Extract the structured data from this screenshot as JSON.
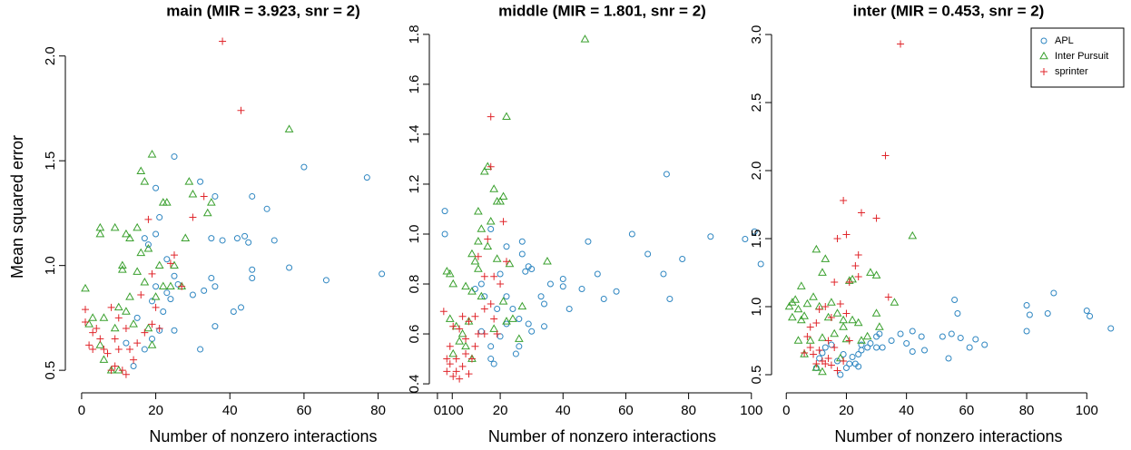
{
  "chart_data": [
    {
      "type": "scatter",
      "title": "main (MIR = 3.923, snr = 2)",
      "xlabel": "Number of nonzero interactions",
      "ylabel": "Mean squared error",
      "xlim": [
        -3.9,
        101.9
      ],
      "ylim": [
        0.427,
        2.133
      ],
      "xticks": [
        0,
        20,
        40,
        60,
        80,
        100
      ],
      "yticks": [
        0.5,
        {
          "value": 1.0,
          "label": "1.0"
        },
        1.5,
        {
          "value": 2.0,
          "label": "2.0"
        }
      ],
      "series": [
        {
          "color": "#2e86c1",
          "marker": "circle",
          "x": [
            25,
            32,
            20,
            36,
            60,
            77,
            98,
            98,
            81,
            66,
            56,
            52,
            50,
            46,
            44,
            45,
            42,
            35,
            38,
            46,
            46,
            35,
            36,
            33,
            30,
            43,
            41,
            36,
            32,
            23,
            18,
            17,
            20,
            21,
            25,
            24,
            22,
            21,
            25,
            19,
            17,
            14,
            12,
            15,
            19,
            23,
            20,
            26
          ],
          "y": [
            1.52,
            1.4,
            1.37,
            1.33,
            1.47,
            1.42,
            1.26,
            1.15,
            0.96,
            0.93,
            0.99,
            1.12,
            1.27,
            1.33,
            1.14,
            1.11,
            1.13,
            1.13,
            1.12,
            0.98,
            0.94,
            0.94,
            0.9,
            0.88,
            0.86,
            0.8,
            0.78,
            0.71,
            0.6,
            1.03,
            1.1,
            1.13,
            1.15,
            1.23,
            0.95,
            0.84,
            0.78,
            0.69,
            0.69,
            0.65,
            0.6,
            0.52,
            0.63,
            0.75,
            0.83,
            0.87,
            0.9,
            0.91
          ]
        },
        {
          "color": "#3aa02e",
          "marker": "triangle",
          "x": [
            19,
            16,
            17,
            29,
            56,
            23,
            22,
            30,
            35,
            34,
            5,
            5,
            9,
            12,
            13,
            15,
            1,
            3,
            6,
            10,
            11,
            11,
            15,
            16,
            18,
            21,
            25,
            17,
            13,
            12,
            9,
            14,
            18,
            20,
            24,
            27,
            6,
            8,
            10,
            5,
            2,
            19,
            22,
            28
          ],
          "y": [
            1.53,
            1.45,
            1.4,
            1.4,
            1.65,
            1.3,
            1.3,
            1.34,
            1.3,
            1.25,
            1.18,
            1.15,
            1.18,
            1.15,
            1.13,
            1.18,
            0.89,
            0.75,
            0.75,
            0.8,
            1.0,
            0.98,
            0.97,
            1.06,
            1.08,
            1.0,
            1.0,
            0.92,
            0.85,
            0.78,
            0.7,
            0.72,
            0.7,
            0.85,
            0.9,
            0.9,
            0.55,
            0.5,
            0.5,
            0.62,
            0.72,
            0.62,
            0.9,
            1.13
          ]
        },
        {
          "color": "#e0262b",
          "marker": "plus",
          "x": [
            38,
            43,
            33,
            30,
            18,
            25,
            24,
            19,
            27,
            16,
            20,
            10,
            8,
            1,
            1,
            4,
            5,
            2,
            3,
            9,
            12,
            19,
            21,
            13,
            7,
            10,
            15,
            9,
            11,
            12,
            8,
            6,
            14,
            3,
            17
          ],
          "y": [
            2.07,
            1.74,
            1.33,
            1.23,
            1.22,
            1.05,
            1.01,
            0.96,
            0.9,
            0.86,
            0.8,
            0.75,
            0.8,
            0.79,
            0.73,
            0.7,
            0.65,
            0.62,
            0.6,
            0.65,
            0.7,
            0.72,
            0.7,
            0.6,
            0.58,
            0.6,
            0.63,
            0.52,
            0.5,
            0.48,
            0.5,
            0.6,
            0.55,
            0.68,
            0.68
          ]
        }
      ]
    },
    {
      "type": "scatter",
      "title": "middle (MIR = 1.801, snr = 2)",
      "xlabel": "Number of nonzero interactions",
      "xlim": [
        -2.0,
        107.0
      ],
      "ylim": [
        0.393,
        1.825
      ],
      "xticks": [
        0,
        20,
        40,
        60,
        80,
        100
      ],
      "yticks": [
        0.4,
        0.6,
        0.8,
        {
          "value": 1.0,
          "label": "1.0"
        },
        1.2,
        1.4,
        1.6,
        1.8
      ],
      "series": [
        {
          "color": "#2e86c1",
          "marker": "circle",
          "x": [
            73,
            62,
            87,
            98,
            101,
            103,
            78,
            67,
            48,
            72,
            74,
            57,
            53,
            51,
            46,
            40,
            40,
            36,
            42,
            33,
            30,
            28,
            29,
            27,
            27,
            22,
            17,
            20,
            22,
            24,
            26,
            34,
            30,
            29,
            26,
            25,
            20,
            17,
            17,
            18,
            14,
            15,
            19,
            12,
            14,
            22,
            34
          ],
          "y": [
            1.24,
            1.0,
            0.99,
            0.98,
            1.01,
            0.88,
            0.9,
            0.92,
            0.97,
            0.84,
            0.74,
            0.77,
            0.74,
            0.84,
            0.78,
            0.82,
            0.79,
            0.8,
            0.7,
            0.75,
            0.86,
            0.85,
            0.87,
            0.97,
            0.92,
            0.95,
            1.02,
            0.84,
            0.75,
            0.7,
            0.66,
            0.63,
            0.61,
            0.64,
            0.55,
            0.52,
            0.59,
            0.55,
            0.5,
            0.48,
            0.61,
            0.75,
            0.7,
            0.78,
            0.8,
            0.64,
            0.72
          ]
        },
        {
          "color": "#3aa02e",
          "marker": "triangle",
          "x": [
            47,
            22,
            15,
            16,
            18,
            19,
            20,
            21,
            13,
            17,
            14,
            13,
            11,
            12,
            13,
            16,
            19,
            23,
            35,
            3,
            4,
            5,
            9,
            11,
            14,
            21,
            24,
            27,
            10,
            8,
            6,
            4,
            7,
            9,
            18,
            22,
            26,
            11,
            5
          ],
          "y": [
            1.78,
            1.47,
            1.25,
            1.27,
            1.18,
            1.13,
            1.13,
            1.15,
            1.09,
            1.05,
            1.02,
            0.97,
            0.92,
            0.89,
            0.86,
            0.95,
            0.9,
            0.88,
            0.89,
            0.85,
            0.84,
            0.8,
            0.79,
            0.77,
            0.75,
            0.73,
            0.66,
            0.71,
            0.65,
            0.6,
            0.63,
            0.66,
            0.57,
            0.55,
            0.62,
            0.65,
            0.58,
            0.5,
            0.52
          ]
        },
        {
          "color": "#e0262b",
          "marker": "plus",
          "x": [
            17,
            17,
            21,
            16,
            13,
            22,
            18,
            15,
            20,
            17,
            15,
            12,
            8,
            2,
            5,
            7,
            10,
            18,
            13,
            9,
            4,
            3,
            4,
            3,
            6,
            8,
            9,
            11,
            5,
            6,
            7,
            12,
            10,
            19,
            15
          ],
          "y": [
            1.47,
            1.27,
            1.05,
            0.98,
            0.91,
            0.89,
            0.83,
            0.83,
            0.8,
            0.72,
            0.7,
            0.67,
            0.67,
            0.69,
            0.63,
            0.62,
            0.65,
            0.66,
            0.6,
            0.58,
            0.55,
            0.5,
            0.48,
            0.45,
            0.5,
            0.47,
            0.52,
            0.5,
            0.43,
            0.45,
            0.42,
            0.55,
            0.44,
            0.6,
            0.6
          ]
        }
      ]
    },
    {
      "type": "scatter",
      "title": "inter (MIR = 0.453, snr = 2)",
      "xlabel": "Number of nonzero interactions",
      "xlim": [
        -4.3,
        112.3
      ],
      "ylim": [
        0.42,
        3.047
      ],
      "xticks": [
        0,
        20,
        40,
        60,
        80,
        100
      ],
      "yticks": [
        0.5,
        {
          "value": 1.0,
          "label": "1.0"
        },
        1.5,
        {
          "value": 2.0,
          "label": "2.0"
        },
        2.5,
        {
          "value": 3.0,
          "label": "3.0"
        }
      ],
      "legend": "topright",
      "series": [
        {
          "name": "APL",
          "color": "#2e86c1",
          "marker": "circle",
          "x": [
            89,
            80,
            81,
            87,
            100,
            101,
            108,
            80,
            56,
            57,
            55,
            66,
            61,
            63,
            58,
            54,
            52,
            45,
            42,
            46,
            42,
            38,
            40,
            35,
            31,
            30,
            30,
            32,
            28,
            27,
            25,
            24,
            22,
            21,
            20,
            18,
            23,
            25,
            19,
            15,
            13,
            11,
            10,
            12,
            17,
            24
          ],
          "y": [
            1.1,
            1.01,
            0.94,
            0.95,
            0.97,
            0.93,
            0.84,
            0.82,
            1.05,
            0.95,
            0.8,
            0.72,
            0.7,
            0.76,
            0.77,
            0.62,
            0.78,
            0.78,
            0.82,
            0.68,
            0.67,
            0.8,
            0.73,
            0.75,
            0.8,
            0.78,
            0.7,
            0.7,
            0.73,
            0.7,
            0.72,
            0.65,
            0.63,
            0.58,
            0.55,
            0.5,
            0.58,
            0.68,
            0.65,
            0.72,
            0.7,
            0.62,
            0.55,
            0.66,
            0.6,
            0.56
          ]
        },
        {
          "name": "Inter Pursuit",
          "color": "#3aa02e",
          "marker": "triangle",
          "x": [
            42,
            10,
            28,
            30,
            22,
            21,
            12,
            13,
            5,
            3,
            2,
            1,
            4,
            2,
            5,
            6,
            7,
            9,
            11,
            15,
            14,
            17,
            19,
            24,
            36,
            25,
            27,
            31,
            30,
            19,
            16,
            12,
            8,
            6,
            4,
            10,
            12,
            18,
            20,
            22
          ],
          "y": [
            1.52,
            1.42,
            1.25,
            1.23,
            1.2,
            1.19,
            1.25,
            1.35,
            1.15,
            1.05,
            1.03,
            1.0,
            0.98,
            0.92,
            0.9,
            0.93,
            1.02,
            1.07,
            1.0,
            1.03,
            0.92,
            0.95,
            0.9,
            0.88,
            1.03,
            0.75,
            0.78,
            0.85,
            0.95,
            0.85,
            0.8,
            0.77,
            0.75,
            0.65,
            0.75,
            0.55,
            0.52,
            0.62,
            0.76,
            0.9
          ]
        },
        {
          "name": "sprinter",
          "color": "#e0262b",
          "marker": "plus",
          "x": [
            38,
            33,
            25,
            30,
            19,
            20,
            17,
            24,
            23,
            24,
            21,
            16,
            34,
            13,
            11,
            18,
            20,
            15,
            8,
            10,
            7,
            8,
            6,
            11,
            14,
            16,
            12,
            13,
            15,
            17,
            14,
            9,
            10,
            19,
            21
          ],
          "y": [
            2.93,
            2.11,
            1.69,
            1.65,
            1.78,
            1.53,
            1.5,
            1.38,
            1.3,
            1.22,
            1.18,
            1.18,
            1.07,
            1.0,
            0.98,
            1.02,
            0.95,
            0.92,
            0.85,
            0.88,
            0.78,
            0.7,
            0.66,
            0.68,
            0.75,
            0.7,
            0.6,
            0.58,
            0.57,
            0.53,
            0.62,
            0.65,
            0.58,
            0.6,
            0.75
          ]
        }
      ]
    }
  ]
}
